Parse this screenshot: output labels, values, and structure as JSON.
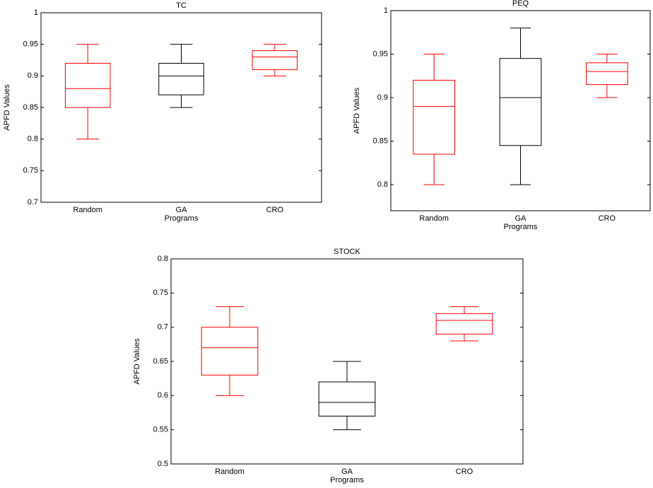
{
  "chart_data": [
    {
      "type": "box",
      "title": "TC",
      "ylabel": "APFD Values",
      "xlabel": "Programs",
      "categories": [
        "Random",
        "GA",
        "CRO"
      ],
      "colors": [
        "#ff0000",
        "#000000",
        "#ff0000"
      ],
      "boxes": [
        {
          "min": 0.8,
          "q1": 0.85,
          "median": 0.88,
          "q3": 0.92,
          "max": 0.95
        },
        {
          "min": 0.85,
          "q1": 0.87,
          "median": 0.9,
          "q3": 0.92,
          "max": 0.95
        },
        {
          "min": 0.9,
          "q1": 0.91,
          "median": 0.93,
          "q3": 0.94,
          "max": 0.95
        }
      ],
      "ylim": [
        0.7,
        1
      ],
      "yticks": [
        0.7,
        0.75,
        0.8,
        0.85,
        0.9,
        0.95,
        1
      ]
    },
    {
      "type": "box",
      "title": "PEQ",
      "ylabel": "APFD Values",
      "xlabel": "Programs",
      "categories": [
        "Random",
        "GA",
        "CRO"
      ],
      "colors": [
        "#ff0000",
        "#000000",
        "#ff0000"
      ],
      "boxes": [
        {
          "min": 0.8,
          "q1": 0.835,
          "median": 0.89,
          "q3": 0.92,
          "max": 0.95
        },
        {
          "min": 0.8,
          "q1": 0.845,
          "median": 0.9,
          "q3": 0.945,
          "max": 0.98
        },
        {
          "min": 0.9,
          "q1": 0.915,
          "median": 0.93,
          "q3": 0.94,
          "max": 0.95
        }
      ],
      "ylim": [
        0.77,
        1
      ],
      "yticks": [
        0.8,
        0.85,
        0.9,
        0.95,
        1
      ]
    },
    {
      "type": "box",
      "title": "STOCK",
      "ylabel": "APFD Values",
      "xlabel": "Programs",
      "categories": [
        "Random",
        "GA",
        "CRO"
      ],
      "colors": [
        "#ff0000",
        "#000000",
        "#ff0000"
      ],
      "boxes": [
        {
          "min": 0.6,
          "q1": 0.63,
          "median": 0.67,
          "q3": 0.7,
          "max": 0.73
        },
        {
          "min": 0.55,
          "q1": 0.57,
          "median": 0.59,
          "q3": 0.62,
          "max": 0.65
        },
        {
          "min": 0.68,
          "q1": 0.69,
          "median": 0.71,
          "q3": 0.72,
          "max": 0.73
        }
      ],
      "ylim": [
        0.5,
        0.8
      ],
      "yticks": [
        0.5,
        0.55,
        0.6,
        0.65,
        0.7,
        0.75,
        0.8
      ]
    }
  ]
}
